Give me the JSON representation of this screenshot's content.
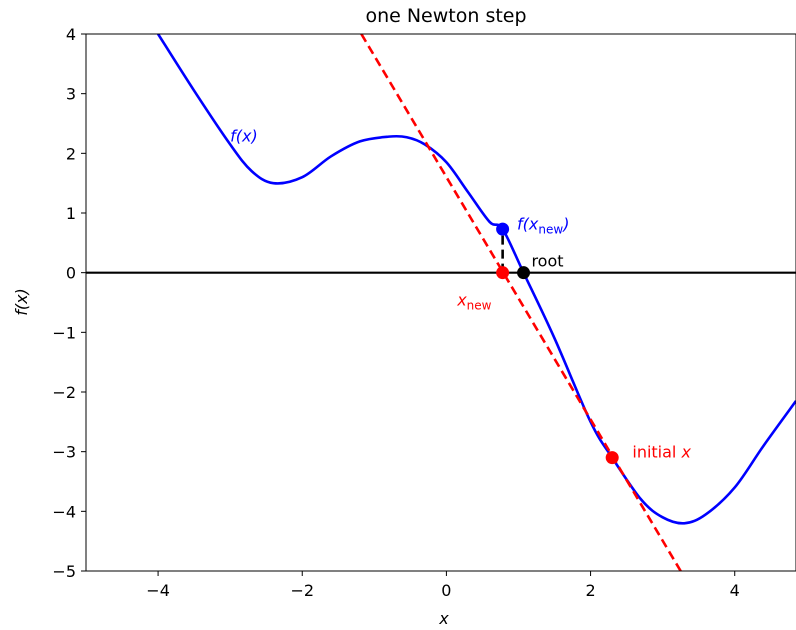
{
  "chart_data": {
    "type": "line",
    "title": "one Newton step",
    "xlabel": "x",
    "ylabel": "f(x)",
    "xlim": [
      -5,
      4.85
    ],
    "ylim": [
      -5,
      4
    ],
    "xticks": [
      -4,
      -2,
      0,
      2,
      4
    ],
    "yticks": [
      -5,
      -4,
      -3,
      -2,
      -1,
      0,
      1,
      2,
      3,
      4
    ],
    "xtick_labels": [
      "−4",
      "−2",
      "0",
      "2",
      "4"
    ],
    "ytick_labels": [
      "−5",
      "−4",
      "−3",
      "−2",
      "−1",
      "0",
      "1",
      "2",
      "3",
      "4"
    ],
    "grid": false,
    "series": [
      {
        "label": "f(x)",
        "style": "solid",
        "color": "#0000ff",
        "x": [
          -4.0,
          -3.5,
          -3.0,
          -2.7,
          -2.4,
          -2.0,
          -1.6,
          -1.2,
          -0.8,
          -0.55,
          -0.3,
          0.0,
          0.3,
          0.6,
          0.78,
          1.07,
          1.5,
          2.0,
          2.3,
          2.7,
          3.0,
          3.3,
          3.6,
          4.0,
          4.4,
          4.85
        ],
        "y": [
          4.0,
          3.05,
          2.15,
          1.7,
          1.5,
          1.6,
          1.95,
          2.2,
          2.28,
          2.27,
          2.15,
          1.85,
          1.35,
          0.85,
          0.73,
          0.0,
          -1.1,
          -2.5,
          -3.1,
          -3.8,
          -4.1,
          -4.2,
          -4.05,
          -3.6,
          -2.9,
          -2.15
        ]
      },
      {
        "label": "tangent",
        "style": "dashed",
        "color": "#ff0000",
        "x": [
          -1.18,
          3.25
        ],
        "y": [
          4.0,
          -5.0
        ]
      },
      {
        "label": "x-axis",
        "style": "solid",
        "color": "#000000",
        "x": [
          -5,
          4.85
        ],
        "y": [
          0,
          0
        ]
      },
      {
        "label": "update",
        "style": "dashed",
        "color": "#000000",
        "x": [
          0.78,
          0.78
        ],
        "y": [
          0.0,
          0.73
        ]
      }
    ],
    "points": [
      {
        "name": "initial-x-point",
        "x": 2.3,
        "y": -3.1,
        "color": "#ff0000"
      },
      {
        "name": "x-new-point",
        "x": 0.78,
        "y": 0.0,
        "color": "#ff0000"
      },
      {
        "name": "f-x-new-point",
        "x": 0.78,
        "y": 0.73,
        "color": "#0000ff"
      },
      {
        "name": "root-point",
        "x": 1.07,
        "y": 0.0,
        "color": "#000000"
      }
    ],
    "annotations": {
      "fx_label": {
        "text": "f(x)",
        "x": -3.0,
        "y": 2.3,
        "color": "#0000ff"
      },
      "fxnew_label": {
        "base": "f(x",
        "sub": "new",
        "tail": ")",
        "x": 0.98,
        "y": 0.82,
        "color": "#0000ff"
      },
      "root_label": {
        "text": "root",
        "x": 1.18,
        "y": 0.2,
        "color": "#000000"
      },
      "xnew_label": {
        "base": "x",
        "sub": "new",
        "x": 0.15,
        "y": -0.45,
        "color": "#ff0000"
      },
      "initial_label": {
        "text": "initial ",
        "var": "x",
        "x": 2.58,
        "y": -3.0,
        "color": "#ff0000"
      }
    }
  }
}
